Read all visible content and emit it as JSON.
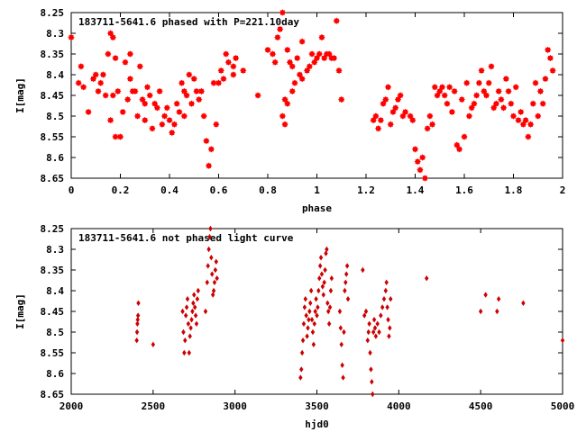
{
  "chart_data": [
    {
      "type": "scatter",
      "title": "183711-5641.6 phased with P=221.10day",
      "xlabel": "phase",
      "ylabel": "I[mag]",
      "xlim": [
        0,
        2
      ],
      "ylim": [
        8.25,
        8.65
      ],
      "y_inverted": true,
      "x_ticks": [
        0,
        0.2,
        0.4,
        0.6,
        0.8,
        1,
        1.2,
        1.4,
        1.6,
        1.8,
        2
      ],
      "y_ticks": [
        8.25,
        8.3,
        8.35,
        8.4,
        8.45,
        8.5,
        8.55,
        8.6,
        8.65
      ],
      "x_tick_labels": [
        "0",
        "0.2",
        "0.4",
        "0.6",
        "0.8",
        "1",
        "1.2",
        "1.4",
        "1.6",
        "1.8",
        "2"
      ],
      "y_tick_labels": [
        "8.25",
        "8.3",
        "8.35",
        "8.4",
        "8.45",
        "8.5",
        "8.55",
        "8.6",
        "8.65"
      ],
      "marker": "star",
      "color": "#ff0000",
      "grid": false,
      "points": [
        [
          0.0,
          8.31
        ],
        [
          0.03,
          8.42
        ],
        [
          0.04,
          8.38
        ],
        [
          0.05,
          8.43
        ],
        [
          0.07,
          8.49
        ],
        [
          0.09,
          8.41
        ],
        [
          0.1,
          8.4
        ],
        [
          0.11,
          8.44
        ],
        [
          0.12,
          8.42
        ],
        [
          0.13,
          8.4
        ],
        [
          0.14,
          8.45
        ],
        [
          0.15,
          8.35
        ],
        [
          0.16,
          8.3
        ],
        [
          0.16,
          8.51
        ],
        [
          0.17,
          8.31
        ],
        [
          0.17,
          8.45
        ],
        [
          0.18,
          8.36
        ],
        [
          0.18,
          8.55
        ],
        [
          0.19,
          8.44
        ],
        [
          0.2,
          8.55
        ],
        [
          0.21,
          8.49
        ],
        [
          0.22,
          8.37
        ],
        [
          0.23,
          8.46
        ],
        [
          0.24,
          8.35
        ],
        [
          0.24,
          8.41
        ],
        [
          0.25,
          8.44
        ],
        [
          0.26,
          8.44
        ],
        [
          0.27,
          8.5
        ],
        [
          0.28,
          8.38
        ],
        [
          0.29,
          8.46
        ],
        [
          0.3,
          8.51
        ],
        [
          0.3,
          8.47
        ],
        [
          0.31,
          8.43
        ],
        [
          0.32,
          8.45
        ],
        [
          0.33,
          8.53
        ],
        [
          0.34,
          8.47
        ],
        [
          0.35,
          8.48
        ],
        [
          0.36,
          8.44
        ],
        [
          0.37,
          8.52
        ],
        [
          0.38,
          8.5
        ],
        [
          0.39,
          8.48
        ],
        [
          0.4,
          8.51
        ],
        [
          0.41,
          8.54
        ],
        [
          0.42,
          8.52
        ],
        [
          0.43,
          8.47
        ],
        [
          0.44,
          8.49
        ],
        [
          0.45,
          8.42
        ],
        [
          0.46,
          8.5
        ],
        [
          0.46,
          8.44
        ],
        [
          0.47,
          8.45
        ],
        [
          0.48,
          8.4
        ],
        [
          0.49,
          8.47
        ],
        [
          0.5,
          8.41
        ],
        [
          0.51,
          8.44
        ],
        [
          0.52,
          8.46
        ],
        [
          0.53,
          8.44
        ],
        [
          0.54,
          8.5
        ],
        [
          0.55,
          8.56
        ],
        [
          0.56,
          8.62
        ],
        [
          0.57,
          8.58
        ],
        [
          0.58,
          8.42
        ],
        [
          0.59,
          8.52
        ],
        [
          0.6,
          8.42
        ],
        [
          0.61,
          8.39
        ],
        [
          0.62,
          8.41
        ],
        [
          0.63,
          8.35
        ],
        [
          0.64,
          8.37
        ],
        [
          0.66,
          8.4
        ],
        [
          0.66,
          8.38
        ],
        [
          0.67,
          8.36
        ],
        [
          0.7,
          8.39
        ],
        [
          0.76,
          8.45
        ],
        [
          0.8,
          8.34
        ],
        [
          0.82,
          8.35
        ],
        [
          0.83,
          8.37
        ],
        [
          0.84,
          8.31
        ],
        [
          0.85,
          8.29
        ],
        [
          0.86,
          8.25
        ],
        [
          0.86,
          8.5
        ],
        [
          0.87,
          8.52
        ],
        [
          0.87,
          8.46
        ],
        [
          0.88,
          8.34
        ],
        [
          0.88,
          8.47
        ],
        [
          0.89,
          8.37
        ],
        [
          0.9,
          8.44
        ],
        [
          0.9,
          8.38
        ],
        [
          0.91,
          8.42
        ],
        [
          0.92,
          8.36
        ],
        [
          0.93,
          8.4
        ],
        [
          0.94,
          8.32
        ],
        [
          0.94,
          8.41
        ],
        [
          0.96,
          8.39
        ],
        [
          0.97,
          8.38
        ],
        [
          0.98,
          8.35
        ],
        [
          0.99,
          8.37
        ],
        [
          1.0,
          8.36
        ],
        [
          1.01,
          8.35
        ],
        [
          1.02,
          8.31
        ],
        [
          1.03,
          8.36
        ],
        [
          1.04,
          8.35
        ],
        [
          1.05,
          8.35
        ],
        [
          1.06,
          8.36
        ],
        [
          1.07,
          8.36
        ],
        [
          1.08,
          8.27
        ],
        [
          1.09,
          8.39
        ],
        [
          1.1,
          8.46
        ],
        [
          1.23,
          8.51
        ],
        [
          1.24,
          8.5
        ],
        [
          1.25,
          8.53
        ],
        [
          1.26,
          8.51
        ],
        [
          1.27,
          8.47
        ],
        [
          1.28,
          8.46
        ],
        [
          1.29,
          8.43
        ],
        [
          1.3,
          8.52
        ],
        [
          1.31,
          8.49
        ],
        [
          1.32,
          8.48
        ],
        [
          1.33,
          8.46
        ],
        [
          1.34,
          8.45
        ],
        [
          1.35,
          8.5
        ],
        [
          1.36,
          8.49
        ],
        [
          1.38,
          8.5
        ],
        [
          1.39,
          8.51
        ],
        [
          1.4,
          8.58
        ],
        [
          1.41,
          8.61
        ],
        [
          1.42,
          8.63
        ],
        [
          1.43,
          8.6
        ],
        [
          1.44,
          8.65
        ],
        [
          1.45,
          8.53
        ],
        [
          1.46,
          8.5
        ],
        [
          1.47,
          8.52
        ],
        [
          1.48,
          8.43
        ],
        [
          1.49,
          8.45
        ],
        [
          1.5,
          8.44
        ],
        [
          1.51,
          8.43
        ],
        [
          1.52,
          8.45
        ],
        [
          1.53,
          8.47
        ],
        [
          1.54,
          8.43
        ],
        [
          1.55,
          8.49
        ],
        [
          1.56,
          8.44
        ],
        [
          1.57,
          8.57
        ],
        [
          1.58,
          8.58
        ],
        [
          1.59,
          8.46
        ],
        [
          1.6,
          8.55
        ],
        [
          1.61,
          8.42
        ],
        [
          1.62,
          8.5
        ],
        [
          1.63,
          8.48
        ],
        [
          1.64,
          8.47
        ],
        [
          1.65,
          8.45
        ],
        [
          1.66,
          8.42
        ],
        [
          1.67,
          8.39
        ],
        [
          1.68,
          8.44
        ],
        [
          1.69,
          8.45
        ],
        [
          1.7,
          8.42
        ],
        [
          1.71,
          8.38
        ],
        [
          1.72,
          8.48
        ],
        [
          1.73,
          8.47
        ],
        [
          1.74,
          8.44
        ],
        [
          1.75,
          8.46
        ],
        [
          1.76,
          8.48
        ],
        [
          1.77,
          8.41
        ],
        [
          1.78,
          8.44
        ],
        [
          1.79,
          8.47
        ],
        [
          1.8,
          8.5
        ],
        [
          1.81,
          8.43
        ],
        [
          1.82,
          8.51
        ],
        [
          1.83,
          8.49
        ],
        [
          1.84,
          8.52
        ],
        [
          1.85,
          8.51
        ],
        [
          1.86,
          8.55
        ],
        [
          1.87,
          8.52
        ],
        [
          1.88,
          8.47
        ],
        [
          1.89,
          8.42
        ],
        [
          1.9,
          8.5
        ],
        [
          1.91,
          8.44
        ],
        [
          1.92,
          8.47
        ],
        [
          1.93,
          8.41
        ],
        [
          1.94,
          8.34
        ],
        [
          1.95,
          8.36
        ],
        [
          1.96,
          8.39
        ]
      ]
    },
    {
      "type": "scatter",
      "title": "183711-5641.6 not phased light curve",
      "xlabel": "hjd0",
      "ylabel": "I[mag]",
      "xlim": [
        2000,
        5000
      ],
      "ylim": [
        8.25,
        8.65
      ],
      "y_inverted": true,
      "x_ticks": [
        2000,
        2500,
        3000,
        3500,
        4000,
        4500,
        5000
      ],
      "y_ticks": [
        8.25,
        8.3,
        8.35,
        8.4,
        8.45,
        8.5,
        8.55,
        8.6,
        8.65
      ],
      "x_tick_labels": [
        "2000",
        "2500",
        "3000",
        "3500",
        "4000",
        "4500",
        "5000"
      ],
      "y_tick_labels": [
        "8.25",
        "8.3",
        "8.35",
        "8.4",
        "8.45",
        "8.5",
        "8.55",
        "8.6",
        "8.65"
      ],
      "marker": "diamond",
      "color": "#cc0000",
      "grid": false,
      "points": [
        [
          2400,
          8.52
        ],
        [
          2402,
          8.5
        ],
        [
          2404,
          8.48
        ],
        [
          2406,
          8.47
        ],
        [
          2408,
          8.46
        ],
        [
          2410,
          8.43
        ],
        [
          2500,
          8.53
        ],
        [
          2680,
          8.45
        ],
        [
          2685,
          8.5
        ],
        [
          2690,
          8.55
        ],
        [
          2695,
          8.52
        ],
        [
          2700,
          8.46
        ],
        [
          2705,
          8.44
        ],
        [
          2710,
          8.42
        ],
        [
          2715,
          8.48
        ],
        [
          2720,
          8.55
        ],
        [
          2725,
          8.51
        ],
        [
          2730,
          8.49
        ],
        [
          2735,
          8.47
        ],
        [
          2740,
          8.45
        ],
        [
          2745,
          8.43
        ],
        [
          2750,
          8.41
        ],
        [
          2755,
          8.44
        ],
        [
          2760,
          8.46
        ],
        [
          2765,
          8.48
        ],
        [
          2770,
          8.42
        ],
        [
          2775,
          8.4
        ],
        [
          2820,
          8.45
        ],
        [
          2830,
          8.38
        ],
        [
          2835,
          8.34
        ],
        [
          2840,
          8.3
        ],
        [
          2845,
          8.27
        ],
        [
          2850,
          8.25
        ],
        [
          2855,
          8.32
        ],
        [
          2860,
          8.36
        ],
        [
          2865,
          8.41
        ],
        [
          2870,
          8.4
        ],
        [
          2875,
          8.38
        ],
        [
          2880,
          8.35
        ],
        [
          2885,
          8.33
        ],
        [
          2890,
          8.37
        ],
        [
          3400,
          8.61
        ],
        [
          3405,
          8.59
        ],
        [
          3410,
          8.55
        ],
        [
          3415,
          8.52
        ],
        [
          3420,
          8.48
        ],
        [
          3425,
          8.44
        ],
        [
          3430,
          8.42
        ],
        [
          3435,
          8.46
        ],
        [
          3440,
          8.51
        ],
        [
          3445,
          8.49
        ],
        [
          3450,
          8.47
        ],
        [
          3455,
          8.45
        ],
        [
          3460,
          8.43
        ],
        [
          3465,
          8.4
        ],
        [
          3470,
          8.47
        ],
        [
          3475,
          8.5
        ],
        [
          3480,
          8.53
        ],
        [
          3485,
          8.48
        ],
        [
          3490,
          8.45
        ],
        [
          3495,
          8.42
        ],
        [
          3500,
          8.46
        ],
        [
          3505,
          8.44
        ],
        [
          3510,
          8.4
        ],
        [
          3515,
          8.37
        ],
        [
          3520,
          8.34
        ],
        [
          3525,
          8.32
        ],
        [
          3530,
          8.36
        ],
        [
          3535,
          8.39
        ],
        [
          3540,
          8.41
        ],
        [
          3545,
          8.38
        ],
        [
          3550,
          8.35
        ],
        [
          3555,
          8.31
        ],
        [
          3560,
          8.3
        ],
        [
          3565,
          8.43
        ],
        [
          3570,
          8.45
        ],
        [
          3575,
          8.48
        ],
        [
          3580,
          8.44
        ],
        [
          3585,
          8.4
        ],
        [
          3590,
          8.37
        ],
        [
          3640,
          8.45
        ],
        [
          3645,
          8.49
        ],
        [
          3650,
          8.53
        ],
        [
          3655,
          8.58
        ],
        [
          3660,
          8.61
        ],
        [
          3665,
          8.5
        ],
        [
          3670,
          8.4
        ],
        [
          3675,
          8.38
        ],
        [
          3680,
          8.36
        ],
        [
          3685,
          8.34
        ],
        [
          3690,
          8.42
        ],
        [
          3780,
          8.35
        ],
        [
          3790,
          8.46
        ],
        [
          3800,
          8.45
        ],
        [
          3810,
          8.52
        ],
        [
          3815,
          8.5
        ],
        [
          3820,
          8.48
        ],
        [
          3825,
          8.55
        ],
        [
          3830,
          8.59
        ],
        [
          3835,
          8.62
        ],
        [
          3840,
          8.65
        ],
        [
          3845,
          8.5
        ],
        [
          3850,
          8.47
        ],
        [
          3855,
          8.49
        ],
        [
          3860,
          8.51
        ],
        [
          3870,
          8.48
        ],
        [
          3880,
          8.5
        ],
        [
          3890,
          8.46
        ],
        [
          3900,
          8.44
        ],
        [
          3910,
          8.42
        ],
        [
          3920,
          8.4
        ],
        [
          3925,
          8.38
        ],
        [
          3930,
          8.44
        ],
        [
          3935,
          8.47
        ],
        [
          3940,
          8.51
        ],
        [
          3945,
          8.49
        ],
        [
          3950,
          8.42
        ],
        [
          4170,
          8.37
        ],
        [
          4500,
          8.45
        ],
        [
          4530,
          8.41
        ],
        [
          4600,
          8.45
        ],
        [
          4610,
          8.42
        ],
        [
          4760,
          8.43
        ],
        [
          5000,
          8.52
        ]
      ]
    }
  ]
}
